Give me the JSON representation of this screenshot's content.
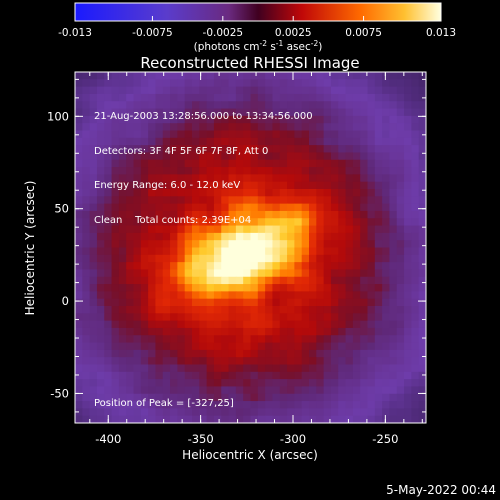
{
  "chart_data": {
    "type": "heatmap",
    "title": "Reconstructed RHESSI Image",
    "xlabel": "Heliocentric X (arcsec)",
    "ylabel": "Heliocentric Y (arcsec)",
    "xlim": [
      -418,
      -228
    ],
    "ylim": [
      -66,
      124
    ],
    "xticks": [
      "-400",
      "-350",
      "-300",
      "-250"
    ],
    "xtick_values": [
      -400,
      -350,
      -300,
      -250
    ],
    "yticks": [
      "-50",
      "0",
      "50",
      "100"
    ],
    "ytick_values": [
      -50,
      0,
      50,
      100
    ],
    "colorbar": {
      "min": -0.013,
      "max": 0.013,
      "ticks": [
        "-0.013",
        "-0.0075",
        "-0.0025",
        "0.0025",
        "0.0075",
        "0.013"
      ],
      "tick_values": [
        -0.013,
        -0.0075,
        -0.0025,
        0.0025,
        0.0075,
        0.013
      ],
      "label_main": "(photons cm",
      "label_exp1": "-2",
      "label_mid": " s",
      "label_exp2": "-1",
      "label_mid2": " asec",
      "label_exp3": "-2",
      "label_end": ")"
    },
    "info_lines": [
      "21-Aug-2003 13:28:56.000 to 13:34:56.000",
      "Detectors: 3F 4F 5F 6F 7F 8F, Att 0",
      "Energy Range: 6.0 - 12.0 keV",
      "Clean    Total counts: 2.39E+04"
    ],
    "peak_label": "Position of Peak = [-327,25]",
    "peak": [
      -327,
      25
    ],
    "colors": [
      "#1a1aff",
      "#6a3cb4",
      "#7a2060",
      "#d01010",
      "#ff7a00",
      "#ffd040",
      "#ffffff"
    ]
  },
  "footer": {
    "date": "5-May-2022 00:44"
  }
}
